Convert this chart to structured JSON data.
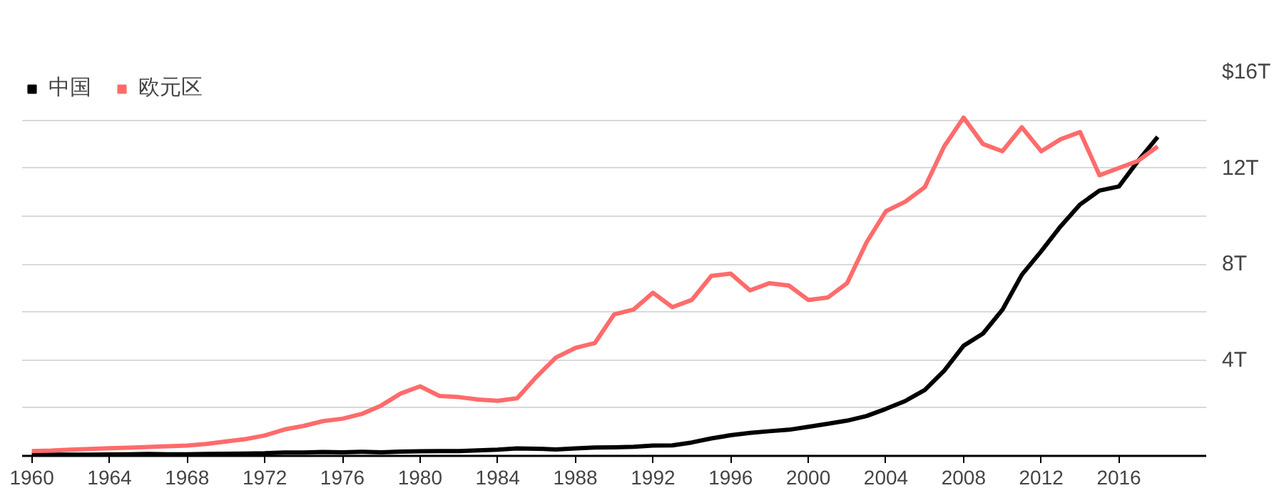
{
  "chart_data": {
    "type": "line",
    "x": [
      1960,
      1961,
      1962,
      1963,
      1964,
      1965,
      1966,
      1967,
      1968,
      1969,
      1970,
      1971,
      1972,
      1973,
      1974,
      1975,
      1976,
      1977,
      1978,
      1979,
      1980,
      1981,
      1982,
      1983,
      1984,
      1985,
      1986,
      1987,
      1988,
      1989,
      1990,
      1991,
      1992,
      1993,
      1994,
      1995,
      1996,
      1997,
      1998,
      1999,
      2000,
      2001,
      2002,
      2003,
      2004,
      2005,
      2006,
      2007,
      2008,
      2009,
      2010,
      2011,
      2012,
      2013,
      2014,
      2015,
      2016,
      2017,
      2018
    ],
    "series": [
      {
        "name": "中国",
        "color": "#000000",
        "values": [
          0.06,
          0.05,
          0.05,
          0.05,
          0.06,
          0.07,
          0.08,
          0.07,
          0.07,
          0.08,
          0.09,
          0.1,
          0.11,
          0.14,
          0.14,
          0.16,
          0.15,
          0.17,
          0.15,
          0.18,
          0.19,
          0.2,
          0.2,
          0.23,
          0.26,
          0.31,
          0.3,
          0.27,
          0.31,
          0.35,
          0.36,
          0.38,
          0.43,
          0.44,
          0.56,
          0.73,
          0.86,
          0.96,
          1.03,
          1.09,
          1.21,
          1.34,
          1.47,
          1.66,
          1.96,
          2.29,
          2.75,
          3.55,
          4.59,
          5.1,
          6.09,
          7.55,
          8.53,
          9.57,
          10.48,
          11.06,
          11.23,
          12.31,
          13.3
        ]
      },
      {
        "name": "欧元区",
        "color": "#ff6b6b",
        "values": [
          0.2,
          0.22,
          0.26,
          0.29,
          0.32,
          0.34,
          0.37,
          0.4,
          0.43,
          0.5,
          0.6,
          0.7,
          0.85,
          1.1,
          1.25,
          1.45,
          1.55,
          1.75,
          2.1,
          2.6,
          2.9,
          2.5,
          2.45,
          2.35,
          2.3,
          2.4,
          3.3,
          4.1,
          4.5,
          4.7,
          5.9,
          6.1,
          6.8,
          6.2,
          6.5,
          7.5,
          7.6,
          6.9,
          7.2,
          7.1,
          6.5,
          6.6,
          7.2,
          8.9,
          10.2,
          10.6,
          11.2,
          12.9,
          14.1,
          13.0,
          12.7,
          13.7,
          12.7,
          13.2,
          13.5,
          11.7,
          12.0,
          12.3,
          12.9
        ]
      }
    ],
    "xlim": [
      1959.5,
      2020.5
    ],
    "xticks": [
      1960,
      1964,
      1968,
      1972,
      1976,
      1980,
      1984,
      1988,
      1992,
      1996,
      2000,
      2004,
      2008,
      2012,
      2016
    ],
    "ylim": [
      0,
      16
    ],
    "yticks": [
      {
        "value": 0,
        "label": null
      },
      {
        "value": 2,
        "label": null
      },
      {
        "value": 4,
        "label": "4T"
      },
      {
        "value": 6,
        "label": null
      },
      {
        "value": 8,
        "label": "8T"
      },
      {
        "value": 10,
        "label": null
      },
      {
        "value": 12,
        "label": "12T"
      },
      {
        "value": 14,
        "label": null
      },
      {
        "value": 16,
        "label": "$16T"
      }
    ],
    "grid": "y",
    "legend": "top left",
    "marker": "none",
    "line_style": "solid"
  }
}
